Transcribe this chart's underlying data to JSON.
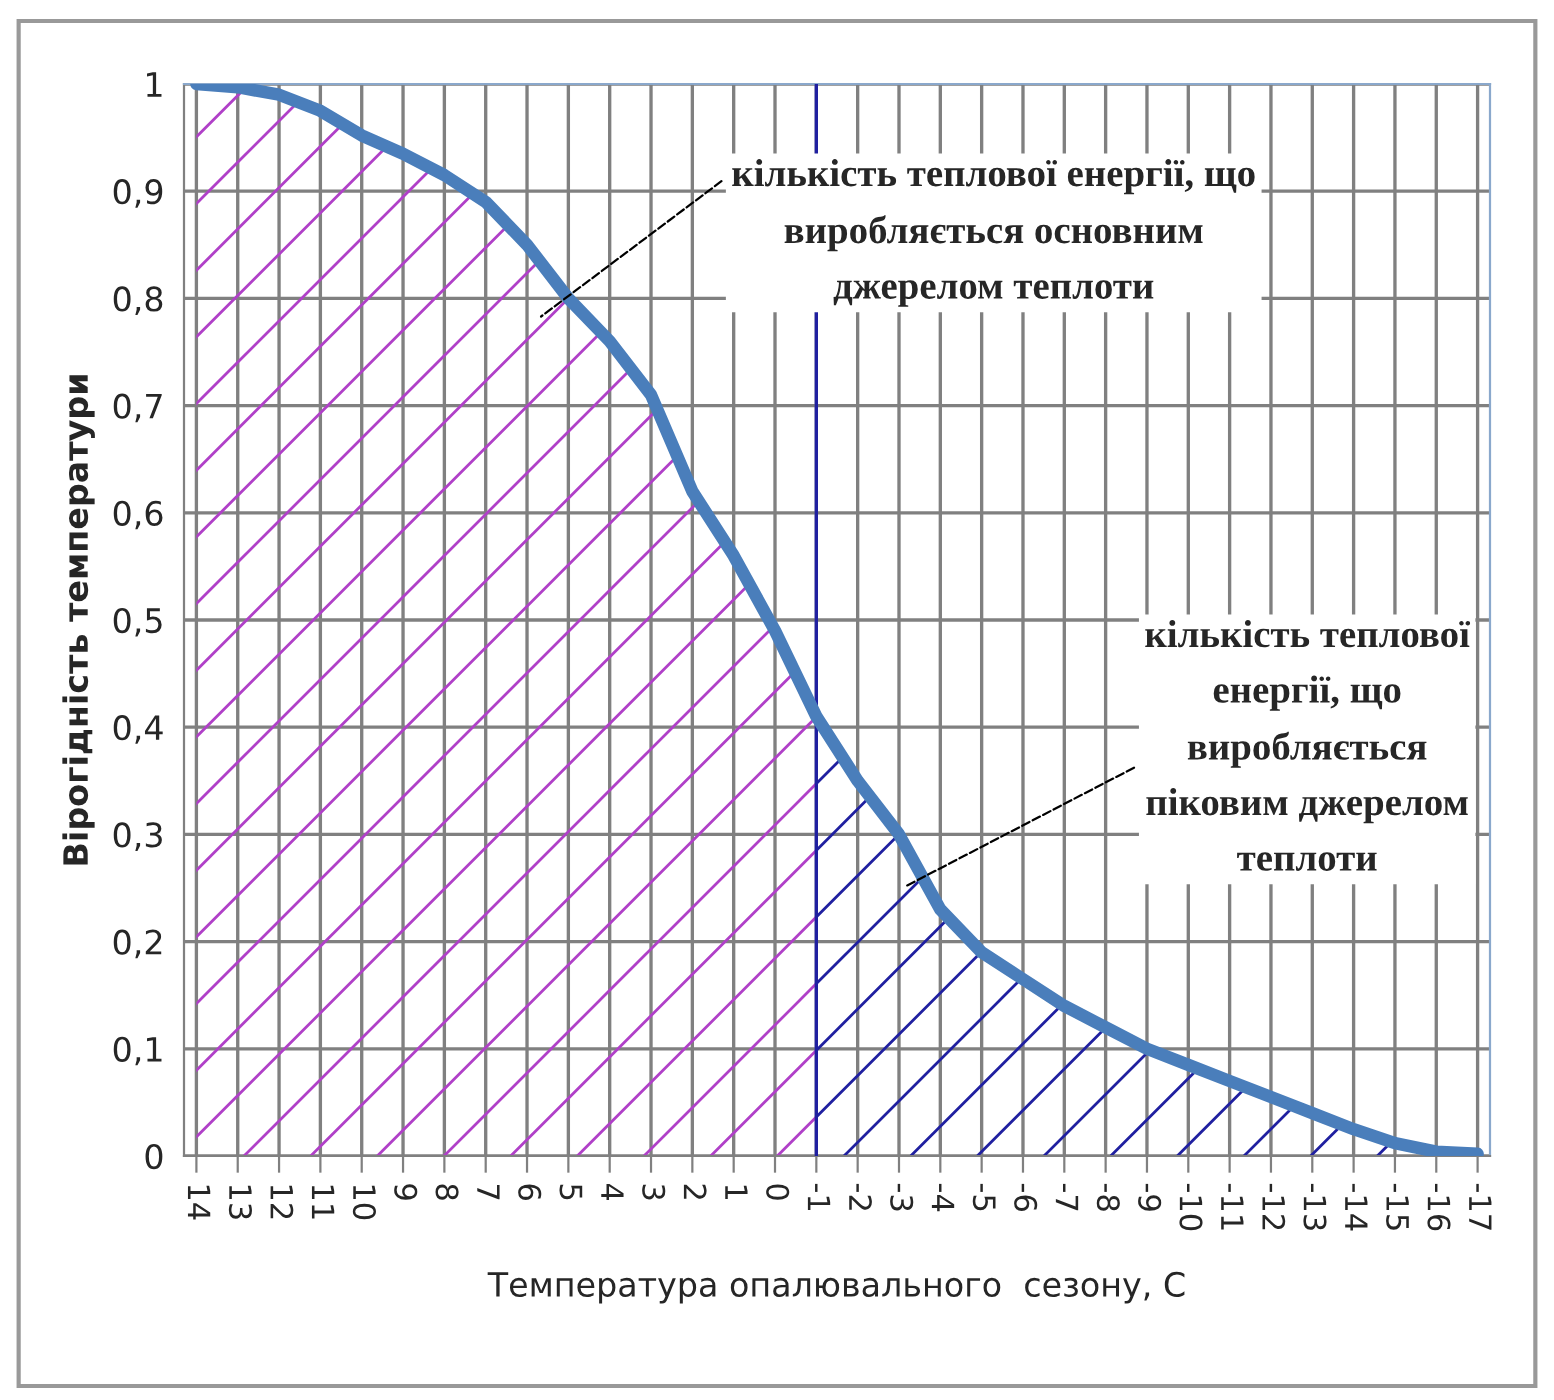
{
  "chart_data": {
    "type": "line",
    "xlabel": "Температура опалювального  сезону, С",
    "ylabel": "Вірогідність температури",
    "categories": [
      "14",
      "13",
      "12",
      "11",
      "10",
      "9",
      "8",
      "7",
      "6",
      "5",
      "4",
      "3",
      "2",
      "1",
      "0",
      "-1",
      "-2",
      "-3",
      "-4",
      "-5",
      "-6",
      "-7",
      "-8",
      "-9",
      "-10",
      "-11",
      "-12",
      "-13",
      "-14",
      "-15",
      "-16",
      "-17"
    ],
    "series": [
      {
        "type": "area",
        "color": "#b040c8",
        "values": [
          1.0,
          0.997,
          0.99,
          0.975,
          0.952,
          0.935,
          0.915,
          0.89,
          0.85,
          0.8,
          0.76,
          0.71,
          0.62,
          0.56,
          0.49,
          0.41,
          null,
          null,
          null,
          null,
          null,
          null,
          null,
          null,
          null,
          null,
          null,
          null,
          null,
          null,
          null,
          null
        ]
      },
      {
        "type": "area",
        "color": "#2020a0",
        "values": [
          null,
          null,
          null,
          null,
          null,
          null,
          null,
          null,
          null,
          null,
          null,
          null,
          null,
          null,
          null,
          0.41,
          0.35,
          0.3,
          0.23,
          0.19,
          0.165,
          0.14,
          0.12,
          0.1,
          0.085,
          0.07,
          0.055,
          0.04,
          0.025,
          0.012,
          0.004,
          0.002
        ]
      },
      {
        "color": "#4a7ebb",
        "values": [
          1.0,
          0.997,
          0.99,
          0.975,
          0.952,
          0.935,
          0.915,
          0.89,
          0.85,
          0.8,
          0.76,
          0.71,
          0.62,
          0.56,
          0.49,
          0.41,
          0.35,
          0.3,
          0.23,
          0.19,
          0.165,
          0.14,
          0.12,
          0.1,
          0.085,
          0.07,
          0.055,
          0.04,
          0.025,
          0.012,
          0.004,
          0.002
        ]
      }
    ],
    "ylim": [
      0,
      1
    ],
    "yticks": [
      0,
      {
        "value": 0.1,
        "label": "0,1"
      },
      {
        "value": 0.2,
        "label": "0,2"
      },
      {
        "value": 0.3,
        "label": "0,3"
      },
      {
        "value": 0.4,
        "label": "0,4"
      },
      {
        "value": 0.5,
        "label": "0,5"
      },
      {
        "value": 0.6,
        "label": "0,6"
      },
      {
        "value": 0.7,
        "label": "0,7"
      },
      {
        "value": 0.8,
        "label": "0,8"
      },
      {
        "value": 0.9,
        "label": "0,9"
      },
      1
    ],
    "grid": true,
    "marker": "none",
    "line_style": "solid",
    "ref_lines": [
      {
        "axis": "x",
        "value": "-1",
        "color": "#2020a0"
      }
    ],
    "annotations": [
      "кількість теплової енергії, що\nвиробляється основним\nджерелом теплоти",
      "кількість теплової\nенергії, що\nвиробляється\nпіковим джерелом\nтеплоти"
    ]
  }
}
